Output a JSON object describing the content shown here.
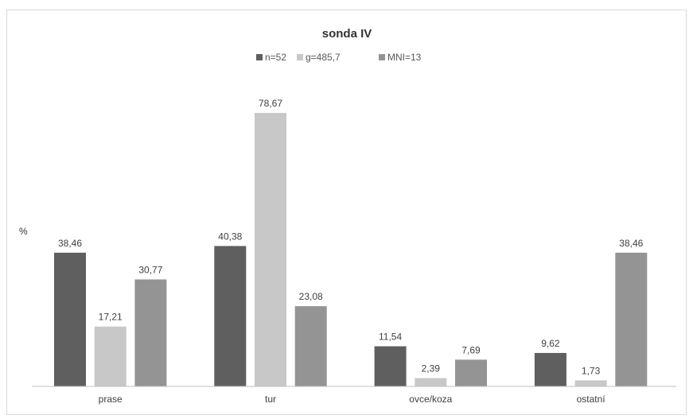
{
  "chart_data": {
    "type": "bar",
    "title": "sonda IV",
    "ylabel": "%",
    "xlabel": "",
    "categories": [
      "prase",
      "tur",
      "ovce/koza",
      "ostatní"
    ],
    "series": [
      {
        "name": "n=52",
        "color": "#5f5f5f",
        "values": [
          38.46,
          40.38,
          11.54,
          9.62
        ],
        "labels": [
          "38,46",
          "40,38",
          "11,54",
          "9,62"
        ]
      },
      {
        "name": "g=485,7",
        "color": "#c8c8c8",
        "values": [
          17.21,
          78.67,
          2.39,
          1.73
        ],
        "labels": [
          "17,21",
          "78,67",
          "2,39",
          "1,73"
        ]
      },
      {
        "name": "MNI=13",
        "color": "#949494",
        "values": [
          30.77,
          23.08,
          7.69,
          38.46
        ],
        "labels": [
          "30,77",
          "23,08",
          "7,69",
          "38,46"
        ]
      }
    ],
    "ylim": [
      0,
      80
    ],
    "grid": false,
    "legend_position": "top"
  }
}
